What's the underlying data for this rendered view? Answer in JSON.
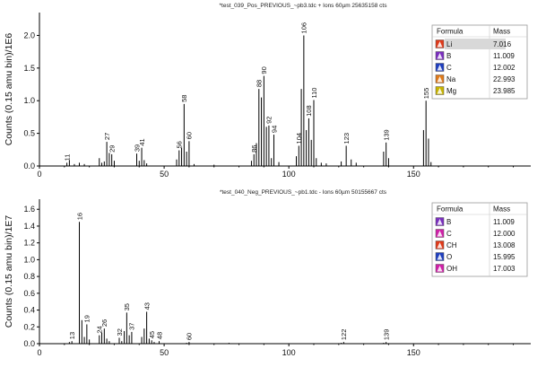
{
  "chart_data": [
    {
      "type": "bar",
      "title": "*test_039_Pos_PREVIOUS_~pb3.tdc  + Ions 60µm 25635158  cts",
      "ylabel": "Counts (0.15 amu bin)/1E6",
      "xlabel": "",
      "xlim": [
        0,
        197
      ],
      "ylim": [
        0,
        2.35
      ],
      "x_ticks": [
        0,
        50,
        100,
        150
      ],
      "y_ticks": [
        0,
        0.5,
        1.0,
        1.5,
        2.0
      ],
      "y_tick_labels": [
        "0.0",
        "0.5",
        "1.0",
        "1.5",
        "2.0"
      ],
      "legend": {
        "headers": [
          "Formula",
          "Mass"
        ],
        "entries": [
          {
            "formula": "Li",
            "mass": "7.016",
            "color": "#e03a1a",
            "selected": true
          },
          {
            "formula": "B",
            "mass": "11.009",
            "color": "#7b2fbf",
            "selected": false
          },
          {
            "formula": "C",
            "mass": "12.002",
            "color": "#1f3fbf",
            "selected": false
          },
          {
            "formula": "Na",
            "mass": "22.993",
            "color": "#e07a1a",
            "selected": false
          },
          {
            "formula": "Mg",
            "mass": "23.985",
            "color": "#c8b400",
            "selected": false
          }
        ]
      },
      "peaks": [
        {
          "x": 11,
          "y": 0.05,
          "label": "11"
        },
        {
          "x": 27,
          "y": 0.37,
          "label": "27"
        },
        {
          "x": 29,
          "y": 0.18,
          "label": "29"
        },
        {
          "x": 39,
          "y": 0.19,
          "label": "39"
        },
        {
          "x": 41,
          "y": 0.28,
          "label": "41"
        },
        {
          "x": 56,
          "y": 0.24,
          "label": "56"
        },
        {
          "x": 58,
          "y": 0.95,
          "label": "58"
        },
        {
          "x": 60,
          "y": 0.38,
          "label": "60"
        },
        {
          "x": 86,
          "y": 0.18,
          "label": "86"
        },
        {
          "x": 88,
          "y": 1.18,
          "label": "88"
        },
        {
          "x": 90,
          "y": 1.38,
          "label": "90"
        },
        {
          "x": 92,
          "y": 0.62,
          "label": "92"
        },
        {
          "x": 94,
          "y": 0.48,
          "label": "94"
        },
        {
          "x": 104,
          "y": 0.31,
          "label": "104"
        },
        {
          "x": 106,
          "y": 2.0,
          "label": "106"
        },
        {
          "x": 108,
          "y": 0.73,
          "label": "108"
        },
        {
          "x": 110,
          "y": 1.01,
          "label": "110"
        },
        {
          "x": 123,
          "y": 0.31,
          "label": "123"
        },
        {
          "x": 139,
          "y": 0.36,
          "label": "139"
        },
        {
          "x": 155,
          "y": 1.0,
          "label": "155"
        }
      ],
      "minor_peaks": [
        {
          "x": 12,
          "y": 0.09
        },
        {
          "x": 14,
          "y": 0.03
        },
        {
          "x": 16,
          "y": 0.05
        },
        {
          "x": 18,
          "y": 0.03
        },
        {
          "x": 24,
          "y": 0.12
        },
        {
          "x": 25,
          "y": 0.05
        },
        {
          "x": 26,
          "y": 0.07
        },
        {
          "x": 28,
          "y": 0.2
        },
        {
          "x": 30,
          "y": 0.08
        },
        {
          "x": 40,
          "y": 0.08
        },
        {
          "x": 42,
          "y": 0.09
        },
        {
          "x": 43,
          "y": 0.04
        },
        {
          "x": 55,
          "y": 0.1
        },
        {
          "x": 57,
          "y": 0.28
        },
        {
          "x": 59,
          "y": 0.22
        },
        {
          "x": 62,
          "y": 0.03
        },
        {
          "x": 70,
          "y": 0.02
        },
        {
          "x": 85,
          "y": 0.08
        },
        {
          "x": 87,
          "y": 0.35
        },
        {
          "x": 89,
          "y": 1.05
        },
        {
          "x": 91,
          "y": 0.6
        },
        {
          "x": 93,
          "y": 0.12
        },
        {
          "x": 96,
          "y": 0.06
        },
        {
          "x": 103,
          "y": 0.15
        },
        {
          "x": 105,
          "y": 1.18
        },
        {
          "x": 107,
          "y": 0.55
        },
        {
          "x": 109,
          "y": 0.4
        },
        {
          "x": 111,
          "y": 0.12
        },
        {
          "x": 113,
          "y": 0.05
        },
        {
          "x": 115,
          "y": 0.04
        },
        {
          "x": 121,
          "y": 0.07
        },
        {
          "x": 125,
          "y": 0.1
        },
        {
          "x": 127,
          "y": 0.05
        },
        {
          "x": 138,
          "y": 0.22
        },
        {
          "x": 140,
          "y": 0.12
        },
        {
          "x": 154,
          "y": 0.55
        },
        {
          "x": 156,
          "y": 0.42
        },
        {
          "x": 157,
          "y": 0.06
        }
      ]
    },
    {
      "type": "bar",
      "title": "*test_040_Neg_PREVIOUS_~pb1.tdc  - Ions 60µm 50155667  cts",
      "ylabel": "Counts (0.15 amu bin)/1E7",
      "xlabel": "",
      "xlim": [
        0,
        197
      ],
      "ylim": [
        0,
        1.72
      ],
      "x_ticks": [
        0,
        50,
        100,
        150
      ],
      "y_ticks": [
        0,
        0.2,
        0.4,
        0.6,
        0.8,
        1.0,
        1.2,
        1.4,
        1.6
      ],
      "y_tick_labels": [
        "0.0",
        "0.2",
        "0.4",
        "0.6",
        "0.8",
        "1.0",
        "1.2",
        "1.4",
        "1.6"
      ],
      "legend": {
        "headers": [
          "Formula",
          "Mass"
        ],
        "entries": [
          {
            "formula": "B",
            "mass": "11.009",
            "color": "#7b2fbf",
            "selected": false
          },
          {
            "formula": "C",
            "mass": "12.000",
            "color": "#d020a8",
            "selected": false
          },
          {
            "formula": "CH",
            "mass": "13.008",
            "color": "#e03a1a",
            "selected": false
          },
          {
            "formula": "O",
            "mass": "15.995",
            "color": "#1f3fbf",
            "selected": false
          },
          {
            "formula": "OH",
            "mass": "17.003",
            "color": "#d020a8",
            "selected": false
          }
        ]
      },
      "peaks": [
        {
          "x": 13,
          "y": 0.03,
          "label": "13"
        },
        {
          "x": 16,
          "y": 1.45,
          "label": "16"
        },
        {
          "x": 19,
          "y": 0.23,
          "label": "19"
        },
        {
          "x": 24,
          "y": 0.1,
          "label": "24"
        },
        {
          "x": 26,
          "y": 0.18,
          "label": "26"
        },
        {
          "x": 32,
          "y": 0.07,
          "label": "32"
        },
        {
          "x": 35,
          "y": 0.37,
          "label": "35"
        },
        {
          "x": 37,
          "y": 0.14,
          "label": "37"
        },
        {
          "x": 43,
          "y": 0.38,
          "label": "43"
        },
        {
          "x": 45,
          "y": 0.04,
          "label": "45"
        },
        {
          "x": 48,
          "y": 0.03,
          "label": "48"
        },
        {
          "x": 60,
          "y": 0.02,
          "label": "60"
        },
        {
          "x": 122,
          "y": 0.02,
          "label": "122"
        },
        {
          "x": 139,
          "y": 0.02,
          "label": "139"
        }
      ],
      "minor_peaks": [
        {
          "x": 12,
          "y": 0.02
        },
        {
          "x": 17,
          "y": 0.28
        },
        {
          "x": 18,
          "y": 0.08
        },
        {
          "x": 20,
          "y": 0.05
        },
        {
          "x": 25,
          "y": 0.13
        },
        {
          "x": 27,
          "y": 0.06
        },
        {
          "x": 28,
          "y": 0.03
        },
        {
          "x": 33,
          "y": 0.03
        },
        {
          "x": 34,
          "y": 0.15
        },
        {
          "x": 36,
          "y": 0.1
        },
        {
          "x": 41,
          "y": 0.08
        },
        {
          "x": 42,
          "y": 0.18
        },
        {
          "x": 44,
          "y": 0.06
        },
        {
          "x": 46,
          "y": 0.02
        },
        {
          "x": 59,
          "y": 0.01
        },
        {
          "x": 76,
          "y": 0.01
        },
        {
          "x": 121,
          "y": 0.01
        },
        {
          "x": 138,
          "y": 0.01
        }
      ]
    }
  ]
}
